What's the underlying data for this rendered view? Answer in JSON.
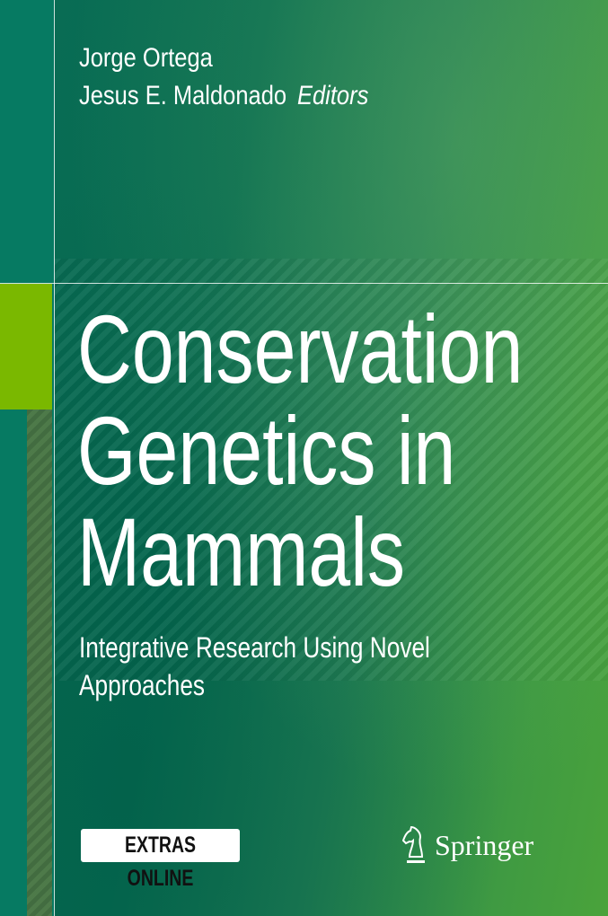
{
  "editors": [
    "Jorge Ortega",
    "Jesus E. Maldonado"
  ],
  "editors_label": "Editors",
  "title_lines": [
    "Conservation",
    "Genetics in",
    "Mammals"
  ],
  "subtitle_lines": [
    "Integrative Research Using Novel",
    "Approaches"
  ],
  "badge": "EXTRAS ONLINE",
  "publisher": {
    "name": "Springer",
    "logo_icon": "knight-horse-icon"
  },
  "colors": {
    "accent_block": "#7ab800",
    "background_dark": "#056a50",
    "background_light": "#4aa33b"
  }
}
